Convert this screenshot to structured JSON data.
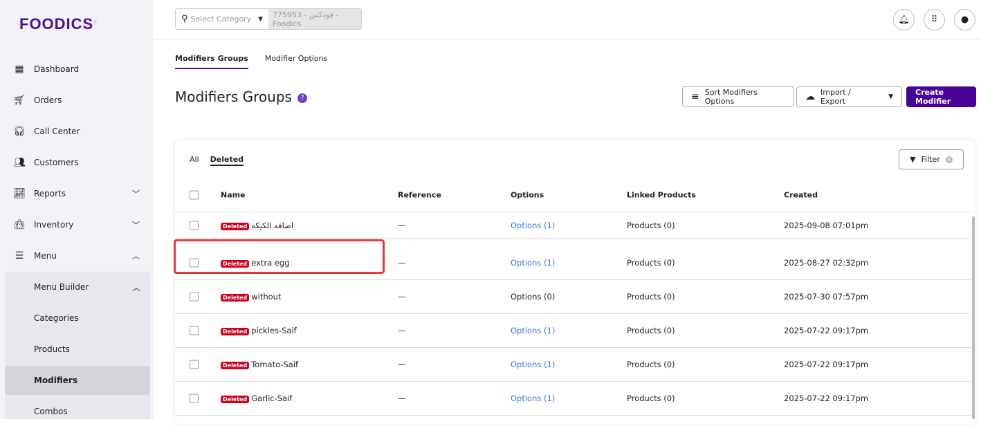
{
  "brand": {
    "logo": "FOODICS",
    "color": "#4a0e9a"
  },
  "sidebar": {
    "items": [
      {
        "label": "Dashboard",
        "icon": "dashboard-icon"
      },
      {
        "label": "Orders",
        "icon": "cart-icon"
      },
      {
        "label": "Call Center",
        "icon": "headset-icon"
      },
      {
        "label": "Customers",
        "icon": "people-icon"
      },
      {
        "label": "Reports",
        "icon": "trend-icon",
        "chevron": "down"
      },
      {
        "label": "Inventory",
        "icon": "bag-icon",
        "chevron": "down"
      },
      {
        "label": "Menu",
        "icon": "menu-icon",
        "chevron": "up"
      }
    ],
    "submenu": [
      {
        "label": "Menu Builder",
        "chevron": "up"
      },
      {
        "label": "Categories"
      },
      {
        "label": "Products"
      },
      {
        "label": "Modifiers",
        "active": true
      },
      {
        "label": "Combos"
      }
    ]
  },
  "topbar": {
    "category_placeholder": "Select Category",
    "branch": "775953 - فودكس - Foodics"
  },
  "tabs": [
    "Modifiers Groups",
    "Modifier Options"
  ],
  "page": {
    "title": "Modifiers Groups",
    "sort_label": "Sort Modifiers Options",
    "import_label": "Import / Export",
    "create_label": "Create Modifier"
  },
  "table": {
    "tabs": [
      "All",
      "Deleted"
    ],
    "filter_label": "Filter",
    "headers": [
      "Name",
      "Reference",
      "Options",
      "Linked Products",
      "Created"
    ],
    "badge": "Deleted",
    "rows": [
      {
        "name": "اضافه الكيكه",
        "reference": "—",
        "options": "Options (1)",
        "options_link": true,
        "products": "Products (0)",
        "created": "2025-09-08 07:01pm"
      },
      {
        "name": "extra egg",
        "reference": "—",
        "options": "Options (1)",
        "options_link": true,
        "products": "Products (0)",
        "created": "2025-08-27 02:32pm"
      },
      {
        "name": "without",
        "reference": "—",
        "options": "Options (0)",
        "options_link": false,
        "products": "Products (0)",
        "created": "2025-07-30 07:57pm"
      },
      {
        "name": "pickles-Saif",
        "reference": "—",
        "options": "Options (1)",
        "options_link": true,
        "products": "Products (0)",
        "created": "2025-07-22 09:17pm"
      },
      {
        "name": "Tomato-Saif",
        "reference": "—",
        "options": "Options (1)",
        "options_link": true,
        "products": "Products (0)",
        "created": "2025-07-22 09:17pm"
      },
      {
        "name": "Garlic-Saif",
        "reference": "—",
        "options": "Options (1)",
        "options_link": true,
        "products": "Products (0)",
        "created": "2025-07-22 09:17pm"
      }
    ]
  }
}
